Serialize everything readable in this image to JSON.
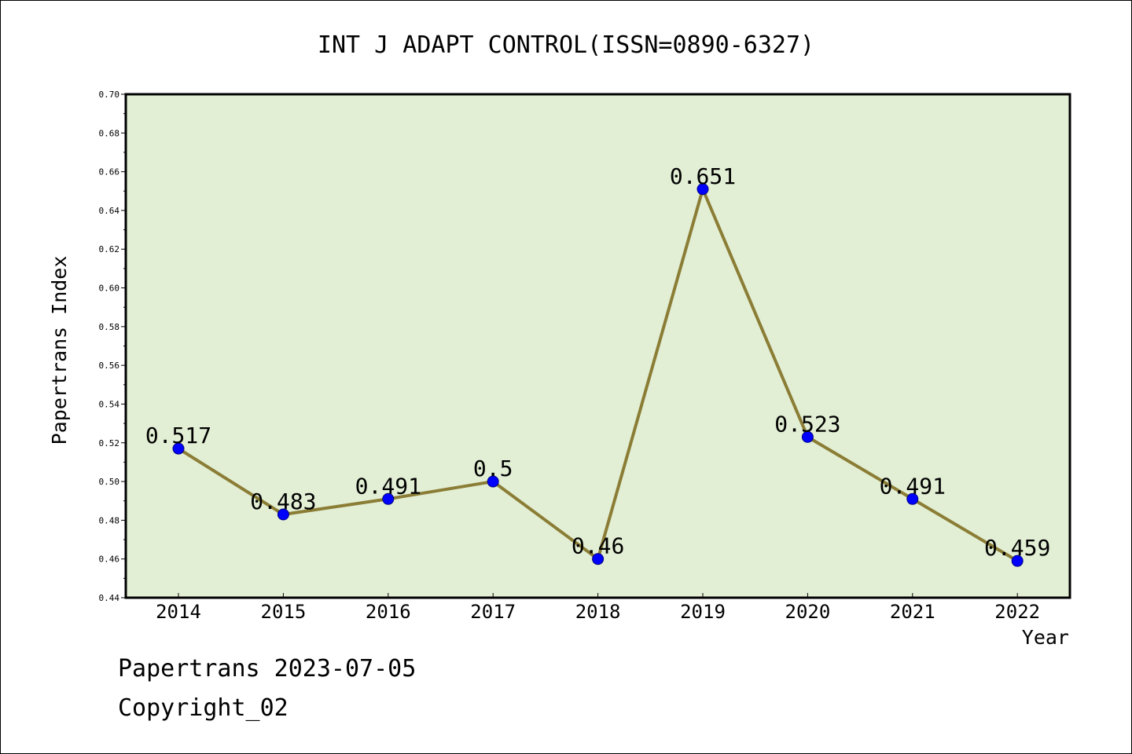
{
  "chart_data": {
    "type": "line",
    "title": "INT J ADAPT CONTROL(ISSN=0890-6327)",
    "xlabel": "Year",
    "ylabel": "Papertrans Index",
    "categories": [
      "2014",
      "2015",
      "2016",
      "2017",
      "2018",
      "2019",
      "2020",
      "2021",
      "2022"
    ],
    "values": [
      0.517,
      0.483,
      0.491,
      0.5,
      0.46,
      0.651,
      0.523,
      0.491,
      0.459
    ],
    "data_labels": [
      "0.517",
      "0.483",
      "0.491",
      "0.5",
      "0.46",
      "0.651",
      "0.523",
      "0.491",
      "0.459"
    ],
    "ylim": [
      0.44,
      0.7
    ],
    "yticks": [
      "0.44",
      "0.46",
      "0.48",
      "0.50",
      "0.52",
      "0.54",
      "0.56",
      "0.58",
      "0.60",
      "0.62",
      "0.64",
      "0.66",
      "0.68",
      "0.70"
    ],
    "grid": false,
    "colors": {
      "plot_background": "#e2efd5",
      "line": "#8b7d35",
      "marker": "#0000ff",
      "axis": "#000000"
    }
  },
  "footer": {
    "stamp": "Papertrans 2023-07-05",
    "copyright": "Copyright_02"
  }
}
